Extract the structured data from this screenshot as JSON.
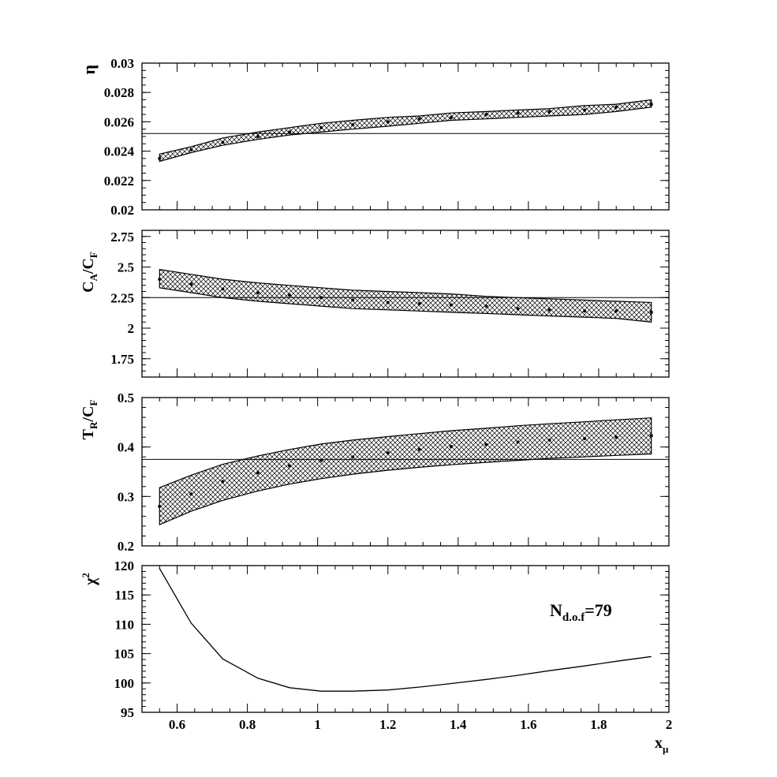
{
  "chart_data": [
    {
      "type": "area",
      "ylabel": "η",
      "ylim": [
        0.02,
        0.03
      ],
      "yticks": [
        "0.02",
        "0.022",
        "0.024",
        "0.026",
        "0.028",
        "0.03"
      ],
      "reference_line": 0.0252,
      "x": [
        0.55,
        0.64,
        0.73,
        0.83,
        0.92,
        1.01,
        1.1,
        1.2,
        1.29,
        1.38,
        1.48,
        1.57,
        1.66,
        1.76,
        1.85,
        1.95
      ],
      "values": [
        0.0235,
        0.0241,
        0.0246,
        0.025,
        0.0253,
        0.0256,
        0.0258,
        0.026,
        0.0262,
        0.0263,
        0.0265,
        0.0266,
        0.0267,
        0.0268,
        0.027,
        0.0272
      ],
      "band_upper": [
        0.0238,
        0.0243,
        0.0249,
        0.0253,
        0.0256,
        0.0259,
        0.0261,
        0.0263,
        0.0264,
        0.0266,
        0.0267,
        0.0268,
        0.0269,
        0.0271,
        0.0272,
        0.0275
      ],
      "band_lower": [
        0.0233,
        0.0239,
        0.0244,
        0.0248,
        0.0251,
        0.0253,
        0.0255,
        0.0257,
        0.0259,
        0.0261,
        0.0262,
        0.0263,
        0.0264,
        0.0265,
        0.0267,
        0.027
      ]
    },
    {
      "type": "area",
      "ylabel": "CA/CF",
      "ylim": [
        1.6,
        2.8
      ],
      "yticks": [
        "1.75",
        "2",
        "2.25",
        "2.5",
        "2.75"
      ],
      "reference_line": 2.25,
      "x": [
        0.55,
        0.64,
        0.73,
        0.83,
        0.92,
        1.01,
        1.1,
        1.2,
        1.29,
        1.38,
        1.48,
        1.57,
        1.66,
        1.76,
        1.85,
        1.95
      ],
      "values": [
        2.4,
        2.36,
        2.32,
        2.29,
        2.27,
        2.25,
        2.23,
        2.21,
        2.2,
        2.19,
        2.18,
        2.16,
        2.15,
        2.14,
        2.14,
        2.13
      ],
      "band_upper": [
        2.48,
        2.44,
        2.4,
        2.37,
        2.35,
        2.33,
        2.31,
        2.3,
        2.29,
        2.28,
        2.26,
        2.25,
        2.24,
        2.23,
        2.22,
        2.21
      ],
      "band_lower": [
        2.33,
        2.29,
        2.25,
        2.22,
        2.2,
        2.18,
        2.16,
        2.15,
        2.14,
        2.13,
        2.12,
        2.11,
        2.1,
        2.09,
        2.08,
        2.05
      ]
    },
    {
      "type": "area",
      "ylabel": "TR/CF",
      "ylim": [
        0.2,
        0.5
      ],
      "yticks": [
        "0.2",
        "0.3",
        "0.4",
        "0.5"
      ],
      "reference_line": 0.375,
      "x": [
        0.55,
        0.64,
        0.73,
        0.83,
        0.92,
        1.01,
        1.1,
        1.2,
        1.29,
        1.38,
        1.48,
        1.57,
        1.66,
        1.76,
        1.85,
        1.95
      ],
      "values": [
        0.28,
        0.305,
        0.33,
        0.348,
        0.362,
        0.373,
        0.38,
        0.388,
        0.395,
        0.401,
        0.405,
        0.41,
        0.414,
        0.417,
        0.42,
        0.423
      ],
      "band_upper": [
        0.318,
        0.343,
        0.365,
        0.382,
        0.395,
        0.406,
        0.414,
        0.421,
        0.427,
        0.433,
        0.438,
        0.443,
        0.447,
        0.451,
        0.455,
        0.459
      ],
      "band_lower": [
        0.243,
        0.27,
        0.292,
        0.311,
        0.325,
        0.336,
        0.345,
        0.353,
        0.359,
        0.364,
        0.369,
        0.373,
        0.377,
        0.38,
        0.383,
        0.386
      ]
    },
    {
      "type": "line",
      "ylabel": "χ²",
      "xlabel": "xμ",
      "ylim": [
        95,
        120
      ],
      "yticks": [
        "95",
        "100",
        "105",
        "110",
        "115",
        "120"
      ],
      "xlim": [
        0.5,
        2.0
      ],
      "xticks": [
        "0.6",
        "0.8",
        "1",
        "1.2",
        "1.4",
        "1.6",
        "1.8",
        "2"
      ],
      "annotation": "Nd.o.f=79",
      "x": [
        0.55,
        0.64,
        0.73,
        0.83,
        0.92,
        1.01,
        1.1,
        1.2,
        1.29,
        1.38,
        1.48,
        1.57,
        1.66,
        1.76,
        1.85,
        1.95
      ],
      "values": [
        119.5,
        110.2,
        104.1,
        100.8,
        99.2,
        98.6,
        98.6,
        98.8,
        99.3,
        99.9,
        100.6,
        101.3,
        102.1,
        102.9,
        103.7,
        104.5
      ]
    }
  ],
  "labels": {
    "eta": {
      "main": "η"
    },
    "ca_cf": {
      "a": "C",
      "a_sub": "A",
      "sep": "/C",
      "b_sub": "F"
    },
    "tr_cf": {
      "a": "T",
      "a_sub": "R",
      "sep": "/C",
      "b_sub": "F"
    },
    "chi2": {
      "main": "χ",
      "sup": "2"
    },
    "x": {
      "main": "x",
      "sub": "μ"
    },
    "ndof": {
      "main": "N",
      "sub": "d.o.f",
      "rest": "=79"
    }
  }
}
